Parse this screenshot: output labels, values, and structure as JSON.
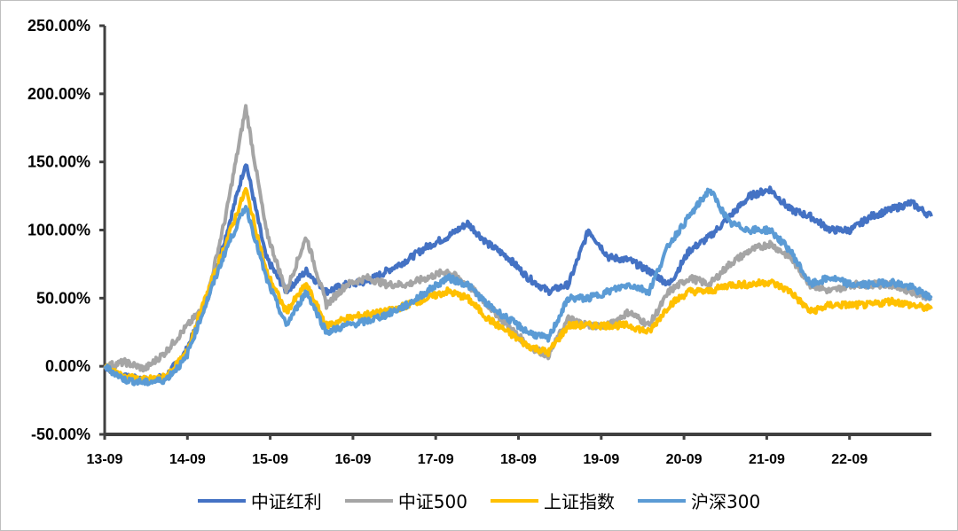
{
  "chart_data": {
    "type": "line",
    "title": "",
    "xlabel": "",
    "ylabel": "",
    "ylim": [
      -50,
      250
    ],
    "y_ticks": [
      "-50.00%",
      "0.00%",
      "50.00%",
      "100.00%",
      "150.00%",
      "200.00%",
      "250.00%"
    ],
    "x_ticks": [
      "13-09",
      "14-09",
      "15-09",
      "16-09",
      "17-09",
      "18-09",
      "19-09",
      "20-09",
      "21-09",
      "22-09"
    ],
    "grid": false,
    "legend_position": "bottom",
    "x": [
      "13-09",
      "13-12",
      "14-03",
      "14-06",
      "14-09",
      "14-12",
      "15-03",
      "15-06",
      "15-07",
      "15-09",
      "15-12",
      "16-03",
      "16-06",
      "16-09",
      "16-12",
      "17-03",
      "17-06",
      "17-09",
      "17-12",
      "18-03",
      "18-06",
      "18-09",
      "18-12",
      "19-03",
      "19-06",
      "19-09",
      "19-12",
      "20-03",
      "20-06",
      "20-09",
      "20-12",
      "21-03",
      "21-06",
      "21-09",
      "21-12",
      "22-03",
      "22-06",
      "22-09",
      "22-12",
      "23-03",
      "23-06",
      "23-09"
    ],
    "series": [
      {
        "name": "中证红利",
        "color": "#4472C4",
        "values": [
          0,
          -8,
          -10,
          -8,
          10,
          45,
          95,
          150,
          80,
          55,
          70,
          55,
          60,
          62,
          70,
          78,
          88,
          95,
          105,
          90,
          80,
          65,
          55,
          60,
          100,
          80,
          78,
          70,
          60,
          85,
          95,
          110,
          125,
          130,
          115,
          110,
          100,
          100,
          110,
          115,
          120,
          110
        ]
      },
      {
        "name": "中证500",
        "color": "#A5A5A5",
        "values": [
          0,
          3,
          -2,
          10,
          28,
          45,
          110,
          190,
          100,
          55,
          95,
          45,
          60,
          65,
          60,
          60,
          65,
          70,
          60,
          45,
          30,
          15,
          8,
          35,
          30,
          30,
          40,
          30,
          55,
          65,
          60,
          75,
          85,
          90,
          80,
          60,
          55,
          60,
          60,
          60,
          55,
          50
        ]
      },
      {
        "name": "上证指数",
        "color": "#FFC000",
        "values": [
          0,
          -8,
          -10,
          -8,
          8,
          50,
          90,
          130,
          70,
          40,
          60,
          30,
          35,
          38,
          40,
          45,
          50,
          55,
          50,
          35,
          25,
          15,
          10,
          30,
          30,
          30,
          30,
          25,
          45,
          55,
          55,
          60,
          60,
          62,
          55,
          40,
          45,
          45,
          45,
          48,
          45,
          42
        ]
      },
      {
        "name": "沪深300",
        "color": "#5B9BD5",
        "values": [
          0,
          -10,
          -12,
          -10,
          5,
          45,
          85,
          118,
          65,
          30,
          55,
          25,
          30,
          33,
          38,
          45,
          55,
          65,
          60,
          45,
          35,
          25,
          20,
          50,
          50,
          55,
          60,
          55,
          90,
          110,
          130,
          105,
          100,
          100,
          85,
          60,
          65,
          60,
          60,
          62,
          58,
          50
        ]
      }
    ]
  }
}
